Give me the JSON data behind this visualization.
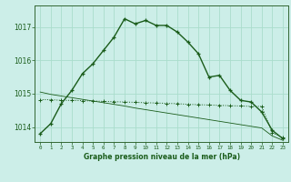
{
  "title": "Graphe pression niveau de la mer (hPa)",
  "background_color": "#cceee8",
  "grid_color": "#aaddcc",
  "line_color": "#1a5c1a",
  "xlim": [
    -0.5,
    23.5
  ],
  "ylim": [
    1013.55,
    1017.65
  ],
  "yticks": [
    1014,
    1015,
    1016,
    1017
  ],
  "xticks": [
    0,
    1,
    2,
    3,
    4,
    5,
    6,
    7,
    8,
    9,
    10,
    11,
    12,
    13,
    14,
    15,
    16,
    17,
    18,
    19,
    20,
    21,
    22,
    23
  ],
  "series1_x": [
    0,
    1,
    2,
    3,
    4,
    5,
    6,
    7,
    8,
    9,
    10,
    11,
    12,
    13,
    14,
    15,
    16,
    17,
    18,
    19,
    20,
    21,
    22,
    23
  ],
  "series1_y": [
    1013.8,
    1014.1,
    1014.7,
    1015.1,
    1015.6,
    1015.9,
    1016.3,
    1016.7,
    1017.25,
    1017.1,
    1017.2,
    1017.05,
    1017.05,
    1016.85,
    1016.55,
    1016.2,
    1015.5,
    1015.55,
    1015.1,
    1014.8,
    1014.75,
    1014.45,
    1013.9,
    1013.65
  ],
  "series2_x": [
    0,
    1,
    2,
    3,
    4,
    5,
    6,
    7,
    8,
    9,
    10,
    11,
    12,
    13,
    14,
    15,
    16,
    17,
    18,
    19,
    20,
    21,
    22,
    23
  ],
  "series2_y": [
    1014.82,
    1014.82,
    1014.8,
    1014.8,
    1014.79,
    1014.78,
    1014.77,
    1014.76,
    1014.75,
    1014.74,
    1014.73,
    1014.72,
    1014.71,
    1014.7,
    1014.68,
    1014.67,
    1014.66,
    1014.65,
    1014.64,
    1014.63,
    1014.62,
    1014.62,
    1013.82,
    1013.68
  ],
  "series3_x": [
    0,
    1,
    2,
    3,
    4,
    5,
    6,
    7,
    8,
    9,
    10,
    11,
    12,
    13,
    14,
    15,
    16,
    17,
    18,
    19,
    20,
    21,
    22,
    23
  ],
  "series3_y": [
    1015.05,
    1014.98,
    1014.93,
    1014.88,
    1014.83,
    1014.78,
    1014.73,
    1014.68,
    1014.63,
    1014.57,
    1014.52,
    1014.47,
    1014.42,
    1014.37,
    1014.32,
    1014.27,
    1014.22,
    1014.17,
    1014.12,
    1014.07,
    1014.02,
    1013.97,
    1013.73,
    1013.6
  ]
}
